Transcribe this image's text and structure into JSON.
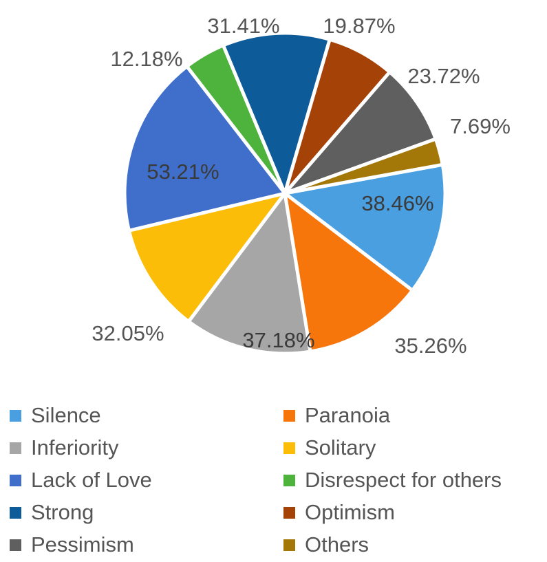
{
  "chart_data": {
    "type": "pie",
    "categories": [
      "Silence",
      "Paranoia",
      "Inferiority",
      "Solitary",
      "Lack of Love",
      "Disrespect for others",
      "Strong",
      "Optimism",
      "Pessimism",
      "Others"
    ],
    "values": [
      38.46,
      35.26,
      37.18,
      32.05,
      53.21,
      12.18,
      31.41,
      19.87,
      23.72,
      7.69
    ],
    "labels": [
      "38.46%",
      "35.26%",
      "37.18%",
      "32.05%",
      "53.21%",
      "12.18%",
      "31.41%",
      "19.87%",
      "23.72%",
      "7.69%"
    ],
    "colors": [
      "#4a9fe0",
      "#f7760c",
      "#a6a6a6",
      "#fbbd08",
      "#3f6fcb",
      "#4db33d",
      "#0d5b99",
      "#a54208",
      "#5f5f5f",
      "#a37808"
    ],
    "label_positions": [
      "inside",
      "outside",
      "inside",
      "outside",
      "inside",
      "outside",
      "outside",
      "outside",
      "outside",
      "outside"
    ],
    "slice_order": "clockwise from 3 o'clock",
    "legend_position": "bottom"
  }
}
